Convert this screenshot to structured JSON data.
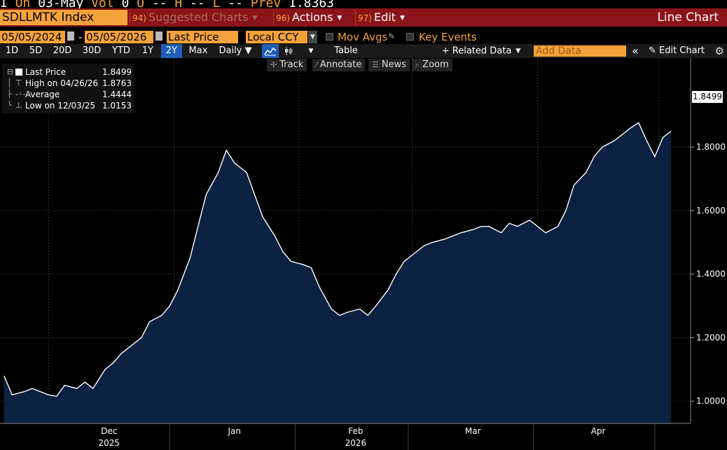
{
  "ticker_line": {
    "prefix": "I",
    "on_label": "On",
    "date": "03-May",
    "vol_label": "Vol",
    "vol": "0",
    "o_label": "O",
    "o_val": "--",
    "h_label": "H",
    "h_val": "--",
    "l_label": "L",
    "l_val": "--",
    "prev_label": "Prev",
    "prev_val": "1.8363"
  },
  "header": {
    "ticker": "SDLLMTK Index",
    "menus": [
      {
        "num": "94)",
        "label": "Suggested Charts"
      },
      {
        "num": "96)",
        "label": "Actions"
      },
      {
        "num": "97)",
        "label": "Edit"
      }
    ],
    "chart_type": "Line Chart"
  },
  "controls": {
    "start_date": "05/05/2024",
    "dash": "-",
    "end_date": "05/05/2026",
    "field": "Last Price",
    "currency": "Local CCY",
    "mov_avgs": "Mov Avgs",
    "key_events": "Key Events"
  },
  "toolbar": {
    "ranges": [
      "1D",
      "5D",
      "20D",
      "30D",
      "YTD",
      "1Y",
      "2Y",
      "Max"
    ],
    "active_range": "2Y",
    "frequency": "Daily ▼",
    "table": "Table",
    "related_data": "+ Related Data",
    "add_data_placeholder": "Add Data",
    "collapse": "«",
    "edit_chart": "✎ Edit Chart",
    "gear": "⚙"
  },
  "subtools": [
    "Track",
    "Annotate",
    "News",
    "Zoom"
  ],
  "legend": {
    "rows": [
      {
        "name": "Last Price",
        "value": "1.8499"
      },
      {
        "name": "High on 04/26/26",
        "value": "1.8763"
      },
      {
        "name": "Average",
        "value": "1.4444"
      },
      {
        "name": "Low on 12/03/25",
        "value": "1.0153"
      }
    ]
  },
  "last_value_tag": "1.8499",
  "colors": {
    "accent_orange": "#f4a23b",
    "title_red": "#8b1418",
    "area_fill": "#0a2141",
    "line": "#ffffff",
    "active_blue": "#1f5fb8"
  },
  "chart_data": {
    "type": "area",
    "x_axis_labels": [
      {
        "month": "Dec",
        "year": "2025"
      },
      {
        "month": "Jan",
        "year": ""
      },
      {
        "month": "Feb",
        "year": "2026"
      },
      {
        "month": "Mar",
        "year": ""
      },
      {
        "month": "Apr",
        "year": ""
      }
    ],
    "y_ticks": [
      "1.0000",
      "1.2000",
      "1.4000",
      "1.6000",
      "1.8000"
    ],
    "ylim": [
      0.93,
      2.08
    ],
    "grid": true,
    "series": [
      {
        "name": "Last Price",
        "x": [
          "2025-11-20",
          "2025-11-22",
          "2025-11-25",
          "2025-11-27",
          "2025-12-01",
          "2025-12-03",
          "2025-12-05",
          "2025-12-08",
          "2025-12-10",
          "2025-12-12",
          "2025-12-15",
          "2025-12-17",
          "2025-12-19",
          "2025-12-22",
          "2025-12-24",
          "2025-12-26",
          "2025-12-29",
          "2025-12-31",
          "2026-01-02",
          "2026-01-05",
          "2026-01-07",
          "2026-01-09",
          "2026-01-12",
          "2026-01-14",
          "2026-01-16",
          "2026-01-19",
          "2026-01-21",
          "2026-01-23",
          "2026-01-26",
          "2026-01-28",
          "2026-01-30",
          "2026-02-02",
          "2026-02-04",
          "2026-02-06",
          "2026-02-09",
          "2026-02-11",
          "2026-02-13",
          "2026-02-16",
          "2026-02-18",
          "2026-02-20",
          "2026-02-23",
          "2026-02-25",
          "2026-02-27",
          "2026-03-02",
          "2026-03-04",
          "2026-03-06",
          "2026-03-09",
          "2026-03-11",
          "2026-03-13",
          "2026-03-16",
          "2026-03-18",
          "2026-03-20",
          "2026-03-23",
          "2026-03-25",
          "2026-03-27",
          "2026-03-30",
          "2026-04-01",
          "2026-04-03",
          "2026-04-06",
          "2026-04-08",
          "2026-04-10",
          "2026-04-13",
          "2026-04-15",
          "2026-04-17",
          "2026-04-20",
          "2026-04-22",
          "2026-04-24",
          "2026-04-26",
          "2026-04-28",
          "2026-04-30",
          "2026-05-02",
          "2026-05-04"
        ],
        "y": [
          1.08,
          1.02,
          1.03,
          1.04,
          1.02,
          1.0153,
          1.05,
          1.04,
          1.06,
          1.04,
          1.1,
          1.12,
          1.15,
          1.18,
          1.2,
          1.25,
          1.27,
          1.3,
          1.35,
          1.45,
          1.55,
          1.65,
          1.72,
          1.79,
          1.75,
          1.72,
          1.65,
          1.58,
          1.52,
          1.47,
          1.44,
          1.43,
          1.42,
          1.36,
          1.29,
          1.27,
          1.28,
          1.29,
          1.27,
          1.3,
          1.35,
          1.4,
          1.44,
          1.47,
          1.49,
          1.5,
          1.51,
          1.52,
          1.53,
          1.54,
          1.55,
          1.55,
          1.53,
          1.56,
          1.55,
          1.57,
          1.55,
          1.53,
          1.55,
          1.6,
          1.68,
          1.72,
          1.77,
          1.8,
          1.82,
          1.84,
          1.86,
          1.8763,
          1.82,
          1.77,
          1.83,
          1.8499
        ]
      }
    ]
  }
}
